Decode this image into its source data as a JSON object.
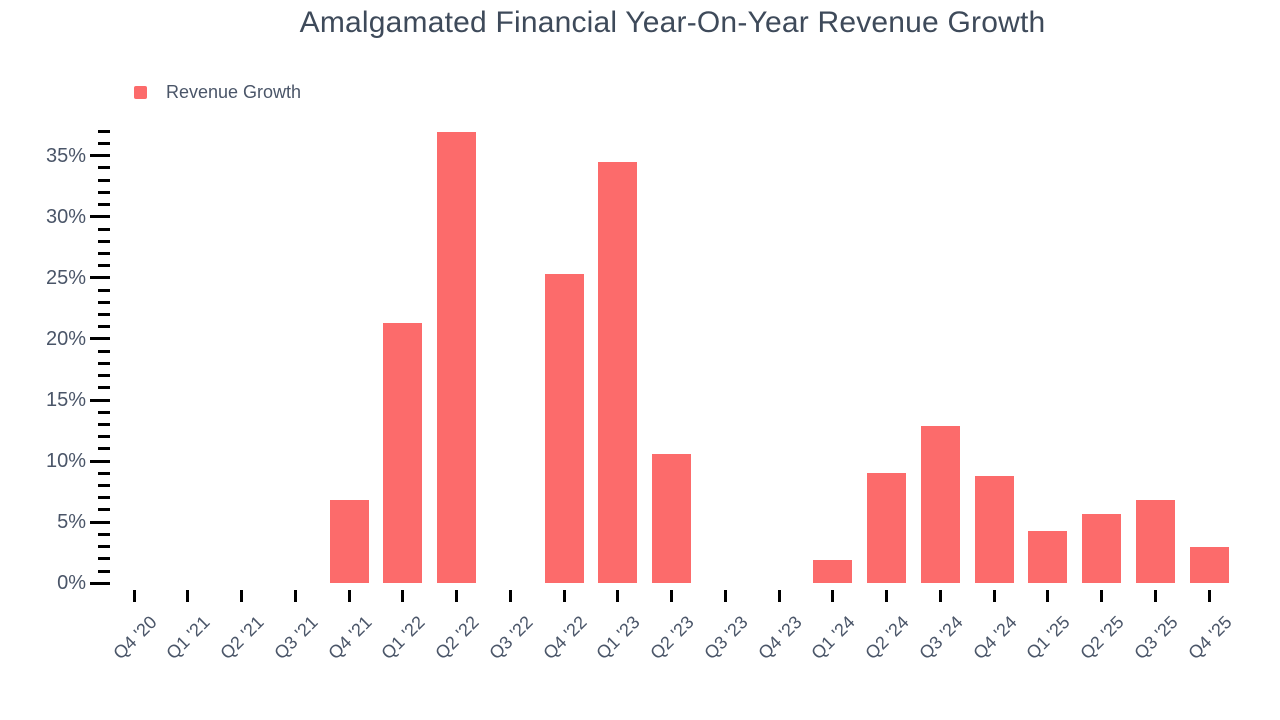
{
  "chart_data": {
    "type": "bar",
    "title": "Amalgamated Financial Year-On-Year Revenue Growth",
    "unit": "%",
    "categories": [
      "Q4 '20",
      "Q1 '21",
      "Q2 '21",
      "Q3 '21",
      "Q4 '21",
      "Q1 '22",
      "Q2 '22",
      "Q3 '22",
      "Q4 '22",
      "Q1 '23",
      "Q2 '23",
      "Q3 '23",
      "Q4 '23",
      "Q1 '24",
      "Q2 '24",
      "Q3 '24",
      "Q4 '24",
      "Q1 '25",
      "Q2 '25",
      "Q3 '25",
      "Q4 '25"
    ],
    "series": [
      {
        "name": "Revenue Growth",
        "values": [
          null,
          null,
          null,
          null,
          6.8,
          21.3,
          36.9,
          null,
          25.3,
          34.5,
          10.6,
          null,
          null,
          1.9,
          9.0,
          12.9,
          8.8,
          4.3,
          5.7,
          6.8,
          3.0
        ]
      }
    ],
    "xlabel": "",
    "ylabel": "",
    "ylim": [
      0,
      37
    ],
    "y_major_step": 5,
    "y_minor_step": 1,
    "y_tick_labels": [
      "0%",
      "5%",
      "10%",
      "15%",
      "20%",
      "25%",
      "30%",
      "35%"
    ],
    "grid": false,
    "legend_position": "top-left",
    "bar_color": "#FC6B6B",
    "tick_color": "#000000",
    "label_color": "#4A5568",
    "title_color": "#3E4A5A"
  }
}
